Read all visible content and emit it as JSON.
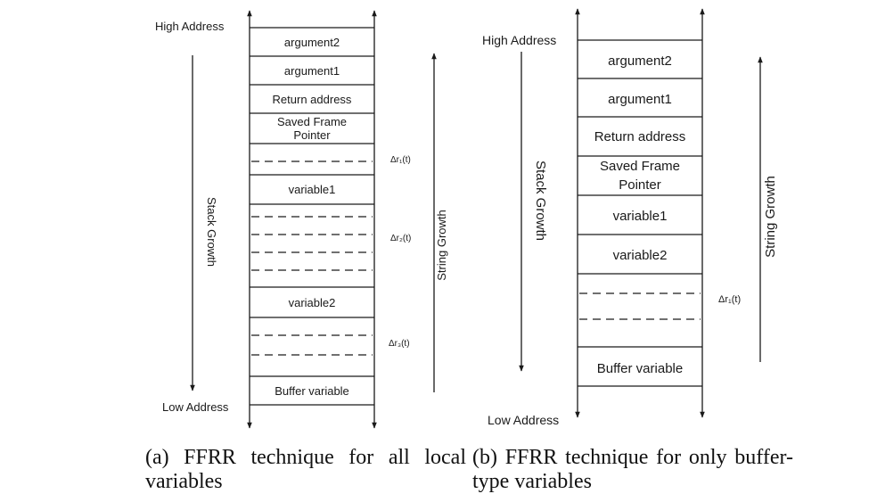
{
  "panel_a": {
    "high_address": "High Address",
    "low_address": "Low Address",
    "stack_growth": "Stack Growth",
    "string_growth": "String Growth",
    "cells": {
      "argument2": "argument2",
      "argument1": "argument1",
      "return_address": "Return address",
      "saved_fp_line1": "Saved Frame",
      "saved_fp_line2": "Pointer",
      "variable1": "variable1",
      "variable2": "variable2",
      "buffer_variable": "Buffer variable"
    },
    "delta_labels": {
      "r1": "Δr₁(t)",
      "r2": "Δr₂(t)",
      "r3": "Δr₃(t)"
    },
    "caption": "(a) FFRR technique for all local variables"
  },
  "panel_b": {
    "high_address": "High Address",
    "low_address": "Low Address",
    "stack_growth": "Stack Growth",
    "string_growth": "String Growth",
    "cells": {
      "argument2": "argument2",
      "argument1": "argument1",
      "return_address": "Return address",
      "saved_fp_line1": "Saved Frame",
      "saved_fp_line2": "Pointer",
      "variable1": "variable1",
      "variable2": "variable2",
      "buffer_variable": "Buffer variable"
    },
    "delta_labels": {
      "r1": "Δr₁(t)"
    },
    "caption": "(b) FFRR technique for only buffer-type variables"
  }
}
